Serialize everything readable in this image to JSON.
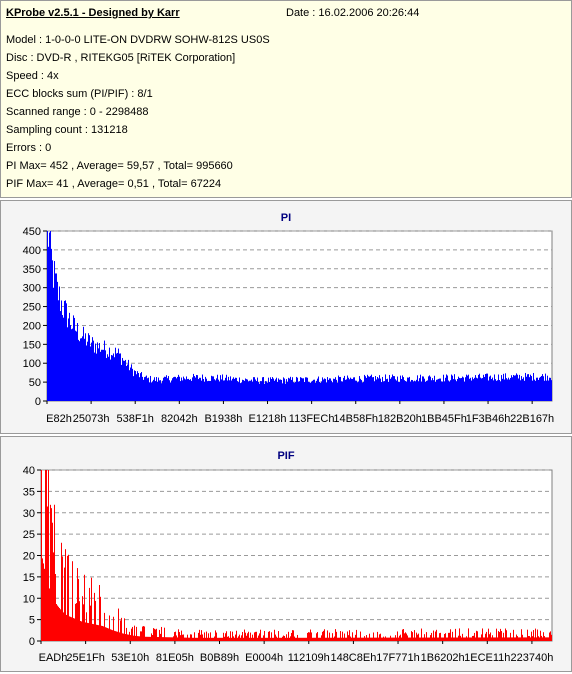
{
  "header": {
    "title": "KProbe v2.5.1 - Designed by Karr",
    "date": "Date : 16.02.2006 20:26:44",
    "lines": [
      "Model : 1-0-0-0 LITE-ON DVDRW SOHW-812S  US0S",
      "Disc : DVD-R , RITEKG05 [RiTEK Corporation]",
      "Speed : 4x",
      "ECC blocks sum (PI/PIF) : 8/1",
      "Scanned range : 0 - 2298488",
      "Sampling count : 131218",
      "Errors : 0",
      "PI Max= 452 , Average= 59,57 , Total= 995660",
      "PIF Max= 41 , Average= 0,51 , Total= 67224"
    ]
  },
  "chart_data": [
    {
      "type": "bar",
      "title": "PI",
      "title_color": "#000080",
      "bar_color": "#0000ff",
      "ylim": [
        0,
        450
      ],
      "yticks": [
        0,
        50,
        100,
        150,
        200,
        250,
        300,
        350,
        400,
        450
      ],
      "xtick_labels": [
        "E82h",
        "25073h",
        "538F1h",
        "82042h",
        "B1938h",
        "E1218h",
        "113FECh",
        "14B58Fh",
        "182B20h",
        "1BB45Fh",
        "1F3B46h",
        "22B167h"
      ],
      "grid": true,
      "profile": [
        [
          0,
          450
        ],
        [
          0.5,
          420
        ],
        [
          1,
          350
        ],
        [
          2,
          290
        ],
        [
          3,
          250
        ],
        [
          4,
          225
        ],
        [
          5,
          200
        ],
        [
          6,
          185
        ],
        [
          7,
          170
        ],
        [
          8,
          160
        ],
        [
          9,
          150
        ],
        [
          10,
          145
        ],
        [
          11,
          140
        ],
        [
          12,
          135
        ],
        [
          13,
          130
        ],
        [
          14,
          125
        ],
        [
          15,
          110
        ],
        [
          16,
          95
        ],
        [
          17,
          80
        ],
        [
          18,
          70
        ],
        [
          19,
          63
        ],
        [
          20,
          58
        ],
        [
          22,
          56
        ],
        [
          25,
          60
        ],
        [
          30,
          62
        ],
        [
          35,
          60
        ],
        [
          40,
          55
        ],
        [
          45,
          54
        ],
        [
          50,
          56
        ],
        [
          55,
          57
        ],
        [
          60,
          58
        ],
        [
          65,
          60
        ],
        [
          70,
          60
        ],
        [
          75,
          61
        ],
        [
          80,
          61
        ],
        [
          85,
          62
        ],
        [
          90,
          63
        ],
        [
          95,
          64
        ],
        [
          100,
          65
        ]
      ]
    },
    {
      "type": "bar",
      "title": "PIF",
      "title_color": "#000080",
      "bar_color": "#ff0000",
      "ylim": [
        0,
        40
      ],
      "yticks": [
        0,
        5,
        10,
        15,
        20,
        25,
        30,
        35,
        40
      ],
      "xtick_labels": [
        "EADh",
        "25E1Fh",
        "53E10h",
        "81E05h",
        "B0B89h",
        "E0004h",
        "112109h",
        "148C8Eh",
        "17F771h",
        "1B6202h",
        "1ECE11h",
        "223740h"
      ],
      "grid": true,
      "profile": [
        [
          0,
          41
        ],
        [
          0.5,
          35
        ],
        [
          1,
          28
        ],
        [
          2,
          22
        ],
        [
          3,
          17
        ],
        [
          4,
          14
        ],
        [
          5,
          12
        ],
        [
          6,
          11
        ],
        [
          7,
          10
        ],
        [
          8,
          9
        ],
        [
          10,
          8
        ],
        [
          12,
          7
        ],
        [
          14,
          5
        ],
        [
          16,
          3.5
        ],
        [
          18,
          2.5
        ],
        [
          20,
          2
        ],
        [
          30,
          1.5
        ],
        [
          50,
          1.5
        ],
        [
          70,
          1.6
        ],
        [
          100,
          1.7
        ]
      ]
    }
  ]
}
